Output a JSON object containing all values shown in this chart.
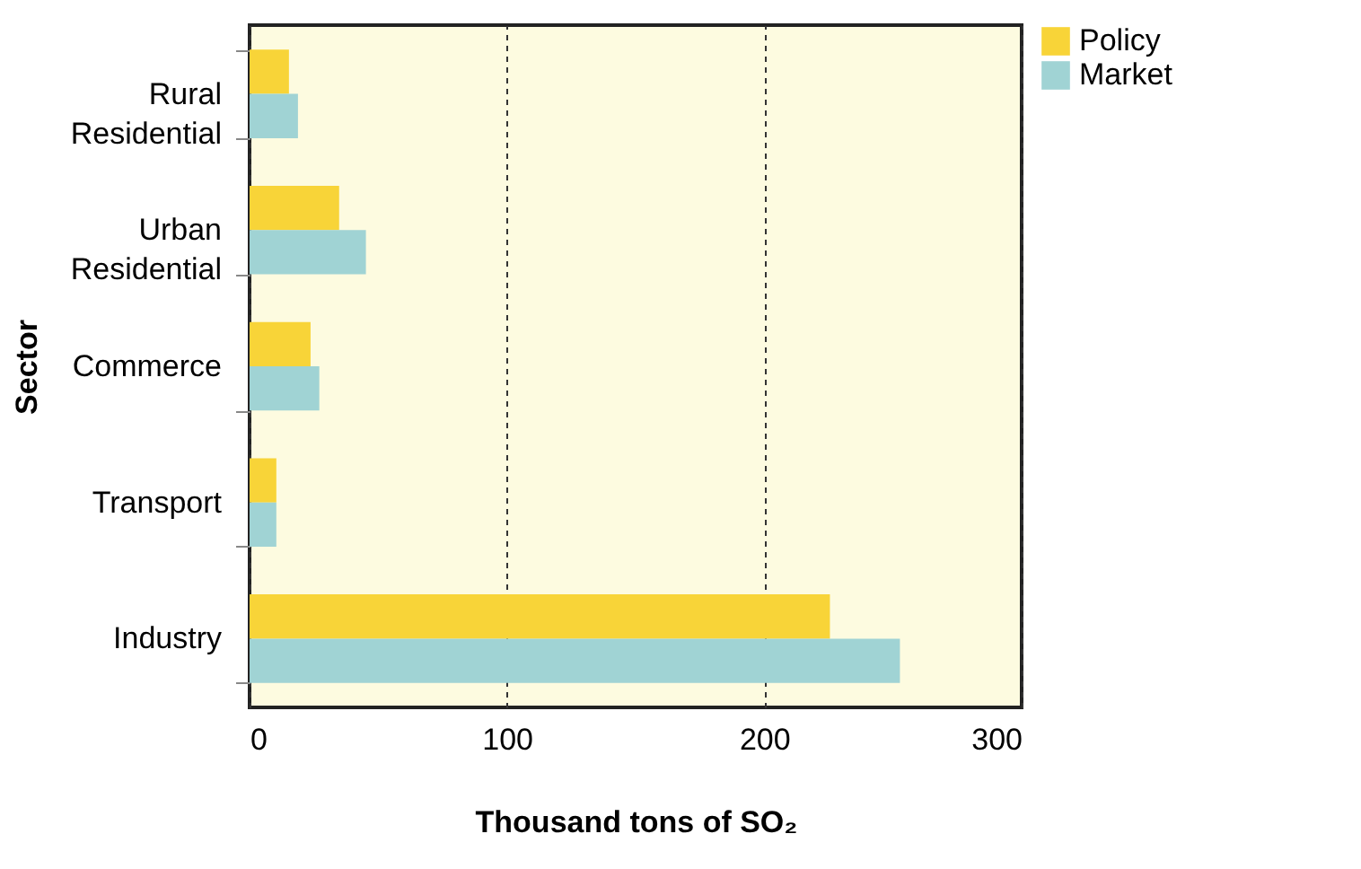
{
  "chart_data": {
    "type": "bar",
    "orientation": "horizontal",
    "xlabel": "Thousand tons of SO₂",
    "ylabel": "Sector",
    "categories": [
      "Rural Residential",
      "Urban Residential",
      "Commerce",
      "Transport",
      "Industry"
    ],
    "series": [
      {
        "name": "Policy",
        "color": "#f8d438",
        "values": [
          15.3,
          34.8,
          23.7,
          10.4,
          225.5
        ]
      },
      {
        "name": "Market",
        "color": "#a0d3d4",
        "values": [
          18.8,
          45.2,
          27.1,
          10.4,
          252.7
        ]
      }
    ],
    "xlim": [
      0,
      300
    ],
    "xticks": [
      0,
      100,
      200,
      300
    ],
    "grid": "x",
    "legend": "top right"
  }
}
